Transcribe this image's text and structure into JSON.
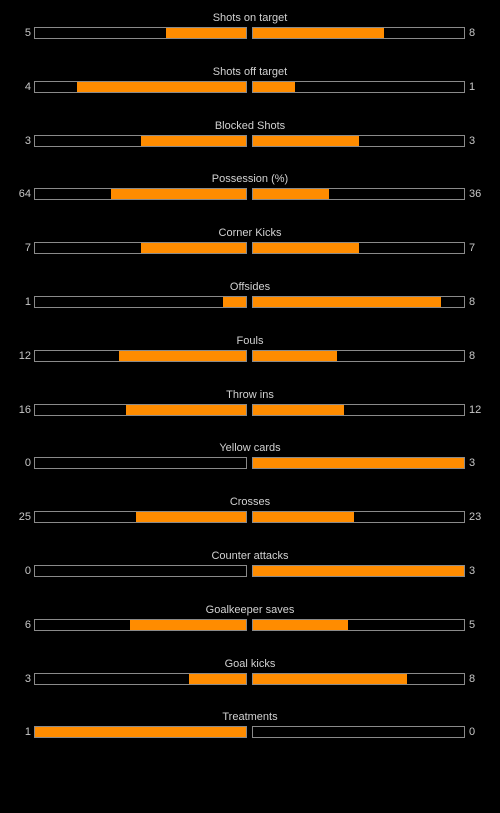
{
  "colors": {
    "background": "#000000",
    "bar_fill": "#ff8c00",
    "bar_border": "#8a8a8a",
    "text": "#c8c8c8"
  },
  "stats": [
    {
      "label": "Shots on target",
      "home": "5",
      "away": "8",
      "home_fill": 0.38,
      "away_fill": 0.62
    },
    {
      "label": "Shots off target",
      "home": "4",
      "away": "1",
      "home_fill": 0.8,
      "away_fill": 0.2
    },
    {
      "label": "Blocked Shots",
      "home": "3",
      "away": "3",
      "home_fill": 0.5,
      "away_fill": 0.5
    },
    {
      "label": "Possession (%)",
      "home": "64",
      "away": "36",
      "home_fill": 0.64,
      "away_fill": 0.36
    },
    {
      "label": "Corner Kicks",
      "home": "7",
      "away": "7",
      "home_fill": 0.5,
      "away_fill": 0.5
    },
    {
      "label": "Offsides",
      "home": "1",
      "away": "8",
      "home_fill": 0.11,
      "away_fill": 0.89
    },
    {
      "label": "Fouls",
      "home": "12",
      "away": "8",
      "home_fill": 0.6,
      "away_fill": 0.4
    },
    {
      "label": "Throw ins",
      "home": "16",
      "away": "12",
      "home_fill": 0.57,
      "away_fill": 0.43
    },
    {
      "label": "Yellow cards",
      "home": "0",
      "away": "3",
      "home_fill": 0.0,
      "away_fill": 1.0
    },
    {
      "label": "Crosses",
      "home": "25",
      "away": "23",
      "home_fill": 0.52,
      "away_fill": 0.48
    },
    {
      "label": "Counter attacks",
      "home": "0",
      "away": "3",
      "home_fill": 0.0,
      "away_fill": 1.0
    },
    {
      "label": "Goalkeeper saves",
      "home": "6",
      "away": "5",
      "home_fill": 0.55,
      "away_fill": 0.45
    },
    {
      "label": "Goal kicks",
      "home": "3",
      "away": "8",
      "home_fill": 0.27,
      "away_fill": 0.73
    },
    {
      "label": "Treatments",
      "home": "1",
      "away": "0",
      "home_fill": 1.0,
      "away_fill": 0.0
    }
  ]
}
